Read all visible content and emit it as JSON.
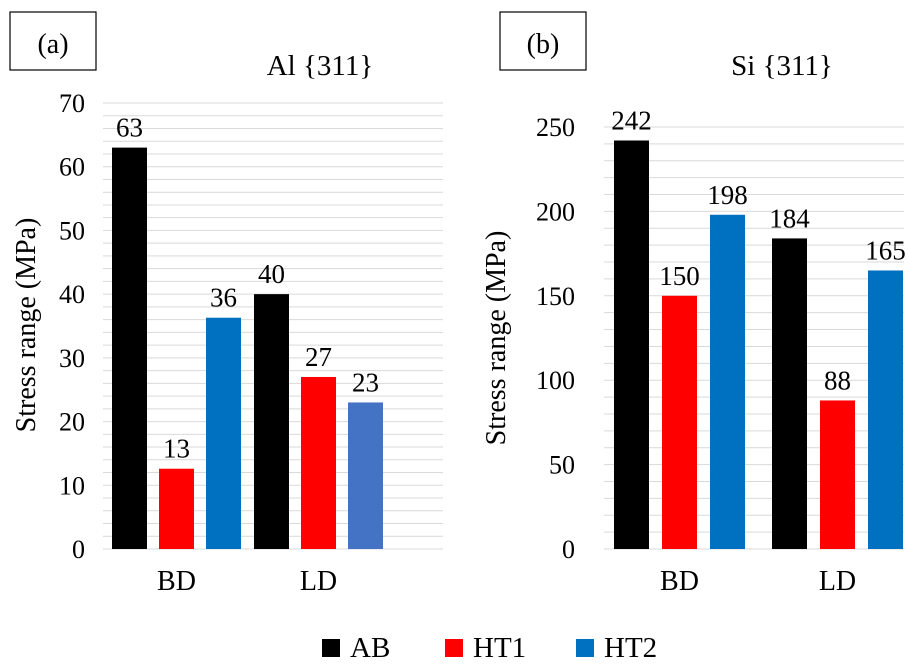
{
  "legend": [
    {
      "name": "AB",
      "color": "#000000"
    },
    {
      "name": "HT1",
      "color": "#ff0000"
    },
    {
      "name": "HT2",
      "color": "#0070c0"
    }
  ],
  "chart_data": [
    {
      "type": "bar",
      "panel_label": "(a)",
      "title": "Al {311}",
      "ylabel": "Stress range (MPa)",
      "xlabel": "",
      "categories": [
        "BD",
        "LD"
      ],
      "ylim": [
        0,
        70
      ],
      "yticks": [
        0,
        10,
        20,
        30,
        40,
        50,
        60,
        70
      ],
      "grid": true,
      "series": [
        {
          "name": "AB",
          "values": [
            63,
            40
          ],
          "labels": [
            "63",
            "40"
          ],
          "colors": [
            "#000000",
            "#000000"
          ]
        },
        {
          "name": "HT1",
          "values": [
            12.6,
            27
          ],
          "labels": [
            "13",
            "27"
          ],
          "colors": [
            "#ff0000",
            "#ff0000"
          ]
        },
        {
          "name": "HT2",
          "values": [
            36.3,
            23
          ],
          "labels": [
            "36",
            "23"
          ],
          "colors": [
            "#0070c0",
            "#4472c4"
          ]
        }
      ]
    },
    {
      "type": "bar",
      "panel_label": "(b)",
      "title": "Si {311}",
      "ylabel": "Stress range (MPa)",
      "xlabel": "",
      "categories": [
        "BD",
        "LD"
      ],
      "ylim": [
        0,
        250
      ],
      "yticks": [
        0,
        50,
        100,
        150,
        200,
        250
      ],
      "grid": true,
      "series": [
        {
          "name": "AB",
          "values": [
            242,
            184
          ],
          "labels": [
            "242",
            "184"
          ],
          "colors": [
            "#000000",
            "#000000"
          ]
        },
        {
          "name": "HT1",
          "values": [
            150,
            88
          ],
          "labels": [
            "150",
            "88"
          ],
          "colors": [
            "#ff0000",
            "#ff0000"
          ]
        },
        {
          "name": "HT2",
          "values": [
            198,
            165
          ],
          "labels": [
            "198",
            "165"
          ],
          "colors": [
            "#0070c0",
            "#0070c0"
          ]
        }
      ]
    }
  ]
}
